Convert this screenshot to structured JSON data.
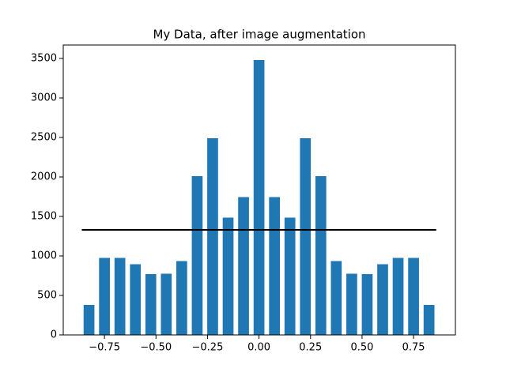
{
  "chart_data": {
    "type": "histogram",
    "title": "My Data, after image augmentation",
    "bins": [
      -0.8625,
      -0.7875,
      -0.7125,
      -0.6375,
      -0.5625,
      -0.4875,
      -0.4125,
      -0.3375,
      -0.2625,
      -0.1875,
      -0.1125,
      -0.0375,
      0.0375,
      0.1125,
      0.1875,
      0.2625,
      0.3375,
      0.4125,
      0.4875,
      0.5625,
      0.6375,
      0.7125,
      0.7875,
      0.8625
    ],
    "values": [
      380,
      975,
      975,
      895,
      770,
      775,
      935,
      2010,
      2490,
      1485,
      1745,
      3480,
      1745,
      1485,
      2490,
      2010,
      935,
      775,
      770,
      895,
      975,
      975,
      380
    ],
    "color": "#1f77b4",
    "rwidth": 0.7,
    "xlim": [
      -0.95,
      0.953
    ],
    "xticks": [
      {
        "value": -0.75,
        "label": "−0.75"
      },
      {
        "value": -0.5,
        "label": "−0.50"
      },
      {
        "value": -0.25,
        "label": "−0.25"
      },
      {
        "value": 0,
        "label": "0.00"
      },
      {
        "value": 0.25,
        "label": "0.25"
      },
      {
        "value": 0.5,
        "label": "0.50"
      },
      {
        "value": 0.75,
        "label": "0.75"
      }
    ],
    "ylim": [
      0,
      3670
    ],
    "yticks": [
      0,
      500,
      1000,
      1500,
      2000,
      2500,
      3000,
      3500
    ],
    "hline": {
      "value": 1330,
      "xmin": -0.86,
      "xmax": 0.86,
      "color": "#000000"
    }
  }
}
